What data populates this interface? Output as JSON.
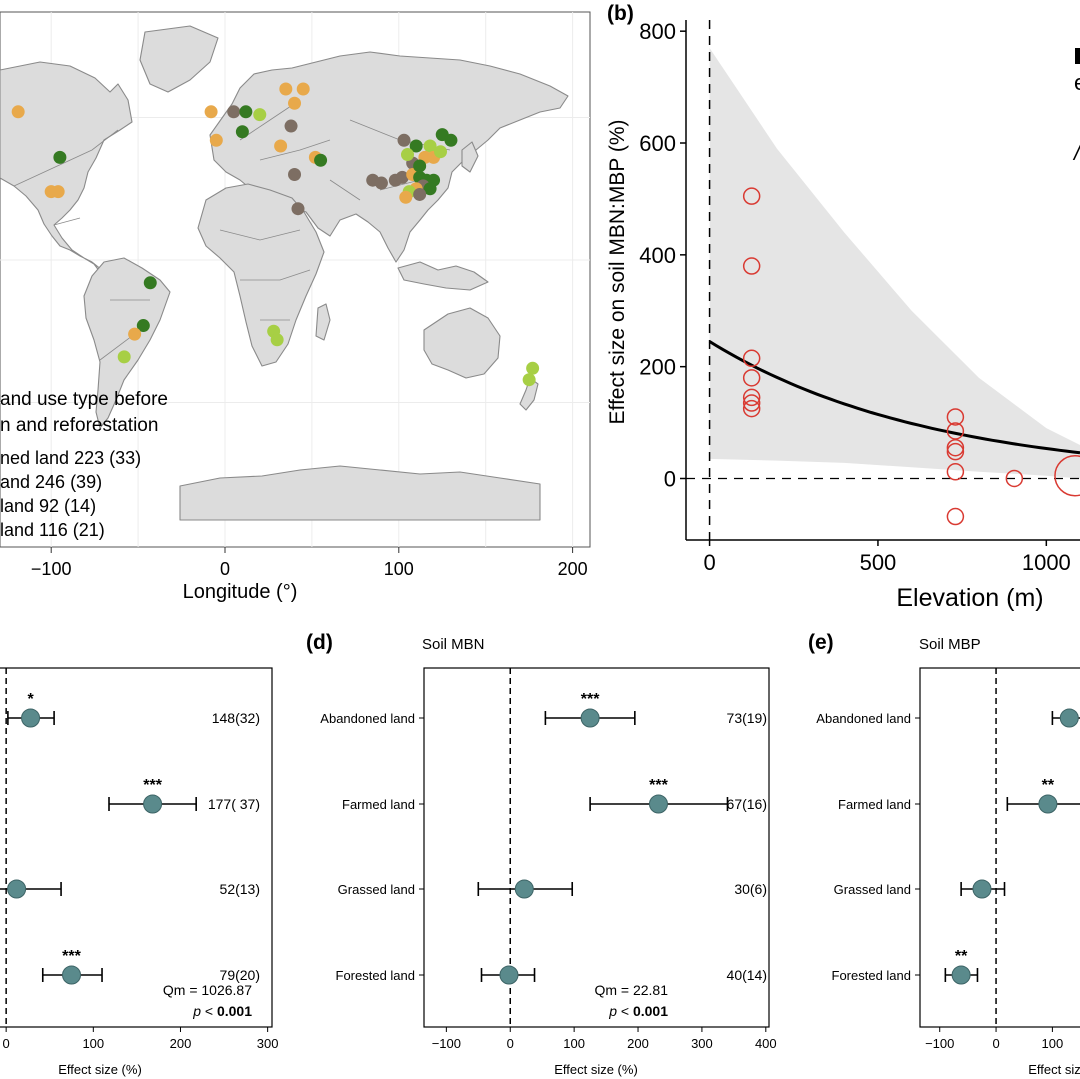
{
  "panel_a": {
    "xlabel": "Longitude (°)",
    "xticks": [
      -100,
      0,
      100,
      200
    ],
    "legend": {
      "title_lines": [
        "and use type before",
        "n and reforestation"
      ],
      "entries": [
        {
          "label": "ned land 223 (33)",
          "color": "#e8a94b"
        },
        {
          "label": "and 246 (39)",
          "color": "#357a22"
        },
        {
          "label": " land 92 (14)",
          "color": "#a7cf45"
        },
        {
          "label": " land 116 (21)",
          "color": "#7d6e63"
        }
      ]
    },
    "colors": {
      "ocean": "#ffffff",
      "land": "#dcdcdc",
      "border": "#8a8a8a",
      "grid": "#ececec"
    },
    "sites": [
      {
        "lon": -119,
        "lat": 52,
        "c": 0
      },
      {
        "lon": -95,
        "lat": 36,
        "c": 1
      },
      {
        "lon": -100,
        "lat": 24,
        "c": 0
      },
      {
        "lon": -96,
        "lat": 24,
        "c": 0
      },
      {
        "lon": -43,
        "lat": -8,
        "c": 1
      },
      {
        "lon": -47,
        "lat": -23,
        "c": 1
      },
      {
        "lon": -52,
        "lat": -26,
        "c": 0
      },
      {
        "lon": -58,
        "lat": -34,
        "c": 2
      },
      {
        "lon": -8,
        "lat": 52,
        "c": 0
      },
      {
        "lon": -5,
        "lat": 42,
        "c": 0
      },
      {
        "lon": 5,
        "lat": 52,
        "c": 3
      },
      {
        "lon": 12,
        "lat": 52,
        "c": 1
      },
      {
        "lon": 20,
        "lat": 51,
        "c": 2
      },
      {
        "lon": 10,
        "lat": 45,
        "c": 1
      },
      {
        "lon": 35,
        "lat": 60,
        "c": 0
      },
      {
        "lon": 40,
        "lat": 55,
        "c": 0
      },
      {
        "lon": 45,
        "lat": 60,
        "c": 0
      },
      {
        "lon": 38,
        "lat": 47,
        "c": 3
      },
      {
        "lon": 32,
        "lat": 40,
        "c": 0
      },
      {
        "lon": 52,
        "lat": 36,
        "c": 0
      },
      {
        "lon": 55,
        "lat": 35,
        "c": 1
      },
      {
        "lon": 40,
        "lat": 30,
        "c": 3
      },
      {
        "lon": 42,
        "lat": 18,
        "c": 3
      },
      {
        "lon": 28,
        "lat": -25,
        "c": 2
      },
      {
        "lon": 30,
        "lat": -28,
        "c": 2
      },
      {
        "lon": 103,
        "lat": 42,
        "c": 3
      },
      {
        "lon": 110,
        "lat": 40,
        "c": 1
      },
      {
        "lon": 118,
        "lat": 40,
        "c": 2
      },
      {
        "lon": 125,
        "lat": 44,
        "c": 1
      },
      {
        "lon": 115,
        "lat": 36,
        "c": 0
      },
      {
        "lon": 108,
        "lat": 34,
        "c": 3
      },
      {
        "lon": 105,
        "lat": 37,
        "c": 2
      },
      {
        "lon": 120,
        "lat": 36,
        "c": 0
      },
      {
        "lon": 98,
        "lat": 28,
        "c": 3
      },
      {
        "lon": 102,
        "lat": 29,
        "c": 3
      },
      {
        "lon": 108,
        "lat": 30,
        "c": 0
      },
      {
        "lon": 112,
        "lat": 29,
        "c": 1
      },
      {
        "lon": 116,
        "lat": 28,
        "c": 1
      },
      {
        "lon": 120,
        "lat": 28,
        "c": 1
      },
      {
        "lon": 114,
        "lat": 26,
        "c": 3
      },
      {
        "lon": 110,
        "lat": 25,
        "c": 0
      },
      {
        "lon": 106,
        "lat": 24,
        "c": 2
      },
      {
        "lon": 104,
        "lat": 22,
        "c": 0
      },
      {
        "lon": 118,
        "lat": 25,
        "c": 1
      },
      {
        "lon": 112,
        "lat": 23,
        "c": 3
      },
      {
        "lon": 85,
        "lat": 28,
        "c": 3
      },
      {
        "lon": 90,
        "lat": 27,
        "c": 3
      },
      {
        "lon": 112,
        "lat": 33,
        "c": 1
      },
      {
        "lon": 124,
        "lat": 38,
        "c": 2
      },
      {
        "lon": 130,
        "lat": 42,
        "c": 1
      },
      {
        "lon": 177,
        "lat": -38,
        "c": 2
      },
      {
        "lon": 175,
        "lat": -42,
        "c": 2
      }
    ]
  },
  "panel_b": {
    "label": "(b)",
    "ylabel": "Effect size on soil MBN:MBP (%)",
    "xlabel": "Elevation (m)",
    "xticks": [
      0,
      500,
      1000
    ],
    "yticks": [
      0,
      200,
      400,
      600,
      800
    ],
    "xlim": [
      -70,
      1100
    ],
    "ylim": [
      -110,
      820
    ],
    "points": [
      {
        "x": 125,
        "y": 505,
        "r": 8
      },
      {
        "x": 125,
        "y": 380,
        "r": 8
      },
      {
        "x": 125,
        "y": 215,
        "r": 8
      },
      {
        "x": 125,
        "y": 180,
        "r": 8
      },
      {
        "x": 125,
        "y": 145,
        "r": 8
      },
      {
        "x": 125,
        "y": 135,
        "r": 8
      },
      {
        "x": 125,
        "y": 125,
        "r": 8
      },
      {
        "x": 730,
        "y": 110,
        "r": 8
      },
      {
        "x": 730,
        "y": 85,
        "r": 8
      },
      {
        "x": 730,
        "y": 55,
        "r": 8
      },
      {
        "x": 730,
        "y": 48,
        "r": 8
      },
      {
        "x": 730,
        "y": 12,
        "r": 8
      },
      {
        "x": 730,
        "y": -68,
        "r": 8
      },
      {
        "x": 905,
        "y": 0,
        "r": 8
      },
      {
        "x": 1085,
        "y": 5,
        "r": 20
      }
    ],
    "fit": {
      "a": 245,
      "b": -0.00152
    },
    "ci": {
      "upper": [
        [
          0,
          770
        ],
        [
          200,
          590
        ],
        [
          400,
          440
        ],
        [
          600,
          300
        ],
        [
          800,
          180
        ],
        [
          1000,
          90
        ],
        [
          1100,
          60
        ]
      ],
      "lower": [
        [
          0,
          35
        ],
        [
          200,
          32
        ],
        [
          400,
          28
        ],
        [
          600,
          20
        ],
        [
          800,
          12
        ],
        [
          1000,
          5
        ],
        [
          1100,
          0
        ]
      ]
    },
    "colors": {
      "point": "#d93a32",
      "ci": "#e5e5e5"
    }
  },
  "forest_common": {
    "categories": [
      "Abandoned land",
      "Farmed land",
      "Grassed land",
      "Forested land"
    ],
    "xlabel": "Effect size (%)",
    "colors": {
      "dot": "#5a8a8c"
    }
  },
  "panel_c": {
    "xticks": [
      0,
      100,
      200,
      300
    ],
    "xlim": [
      -30,
      305
    ],
    "items": [
      {
        "est": 28,
        "lo": 2,
        "hi": 55,
        "sig": "*",
        "n": "148(32)"
      },
      {
        "est": 168,
        "lo": 118,
        "hi": 218,
        "sig": "***",
        "n": "177( 37)"
      },
      {
        "est": 12,
        "lo": -40,
        "hi": 63,
        "sig": "",
        "n": "52(13)"
      },
      {
        "est": 75,
        "lo": 42,
        "hi": 110,
        "sig": "***",
        "n": "79(20)"
      }
    ],
    "qm": "1026.87",
    "p": "0.001"
  },
  "panel_d": {
    "label": "(d)",
    "title": "Soil MBN",
    "xticks": [
      -100,
      0,
      100,
      200,
      300,
      400
    ],
    "xlim": [
      -135,
      405
    ],
    "items": [
      {
        "est": 125,
        "lo": 55,
        "hi": 195,
        "sig": "***",
        "n": "73(19)"
      },
      {
        "est": 232,
        "lo": 125,
        "hi": 340,
        "sig": "***",
        "n": "67(16)"
      },
      {
        "est": 22,
        "lo": -50,
        "hi": 97,
        "sig": "",
        "n": "30(6)"
      },
      {
        "est": -2,
        "lo": -45,
        "hi": 38,
        "sig": "",
        "n": "40(14)"
      }
    ],
    "qm": "22.81",
    "p": "0.001"
  },
  "panel_e": {
    "label": "(e)",
    "title": "Soil MBP",
    "xticks": [
      -100,
      0,
      100
    ],
    "xlim": [
      -135,
      220
    ],
    "items": [
      {
        "est": 130,
        "lo": 100,
        "hi": 170,
        "sig": "",
        "n": ""
      },
      {
        "est": 92,
        "lo": 20,
        "hi": 160,
        "sig": "**",
        "n": ""
      },
      {
        "est": -25,
        "lo": -62,
        "hi": 15,
        "sig": "",
        "n": ""
      },
      {
        "est": -62,
        "lo": -90,
        "hi": -33,
        "sig": "**",
        "n": ""
      }
    ]
  },
  "panel_b_legend_frag": [
    "",
    "",
    "/"
  ]
}
